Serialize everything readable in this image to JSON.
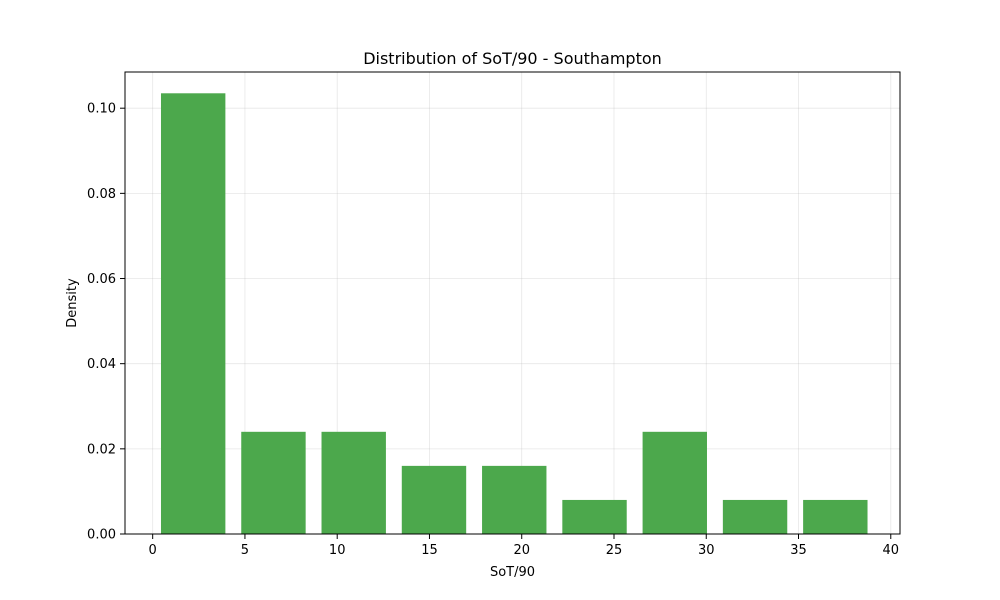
{
  "chart_data": {
    "type": "bar",
    "title": "Distribution of SoT/90 - Southampton",
    "xlabel": "SoT/90",
    "ylabel": "Density",
    "xlim": [
      -1.5,
      40.5
    ],
    "ylim": [
      0,
      0.1085
    ],
    "grid": true,
    "bar_color": "#4ca84c",
    "x_ticks": [
      {
        "value": 0,
        "label": "0"
      },
      {
        "value": 5,
        "label": "5"
      },
      {
        "value": 10,
        "label": "10"
      },
      {
        "value": 15,
        "label": "15"
      },
      {
        "value": 20,
        "label": "20"
      },
      {
        "value": 25,
        "label": "25"
      },
      {
        "value": 30,
        "label": "30"
      },
      {
        "value": 35,
        "label": "35"
      },
      {
        "value": 40,
        "label": "40"
      }
    ],
    "y_ticks": [
      {
        "value": 0,
        "label": "0.00"
      },
      {
        "value": 0.02,
        "label": "0.02"
      },
      {
        "value": 0.04,
        "label": "0.04"
      },
      {
        "value": 0.06,
        "label": "0.06"
      },
      {
        "value": 0.08,
        "label": "0.08"
      },
      {
        "value": 0.1,
        "label": "0.10"
      }
    ],
    "bins": [
      {
        "x0": 0.45,
        "x1": 3.94,
        "value": 0.1035
      },
      {
        "x0": 4.8,
        "x1": 8.29,
        "value": 0.024
      },
      {
        "x0": 9.15,
        "x1": 12.64,
        "value": 0.024
      },
      {
        "x0": 13.5,
        "x1": 16.99,
        "value": 0.016
      },
      {
        "x0": 17.85,
        "x1": 21.34,
        "value": 0.016
      },
      {
        "x0": 22.2,
        "x1": 25.69,
        "value": 0.008
      },
      {
        "x0": 26.55,
        "x1": 30.04,
        "value": 0.024
      },
      {
        "x0": 30.9,
        "x1": 34.39,
        "value": 0.008
      },
      {
        "x0": 35.25,
        "x1": 38.74,
        "value": 0.008
      }
    ]
  }
}
